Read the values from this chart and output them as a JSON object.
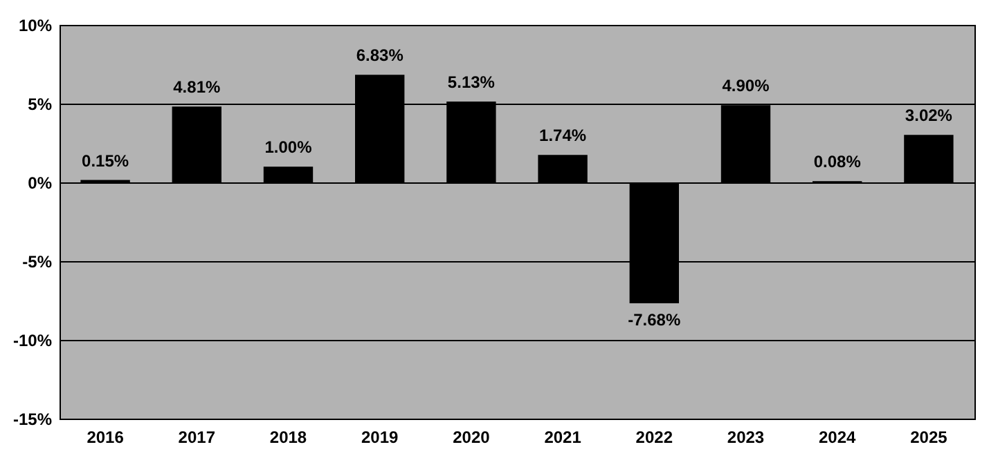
{
  "chart_data": {
    "type": "bar",
    "categories": [
      "2016",
      "2017",
      "2018",
      "2019",
      "2020",
      "2021",
      "2022",
      "2023",
      "2024",
      "2025"
    ],
    "values": [
      0.15,
      4.81,
      1.0,
      6.83,
      5.13,
      1.74,
      -7.68,
      4.9,
      0.08,
      3.02
    ],
    "value_labels": [
      "0.15%",
      "4.81%",
      "1.00%",
      "6.83%",
      "5.13%",
      "1.74%",
      "-7.68%",
      "4.90%",
      "0.08%",
      "3.02%"
    ],
    "color": "#000000",
    "ylim": [
      -15,
      10
    ],
    "yticks": [
      {
        "value": -15,
        "label": "-15%"
      },
      {
        "value": -10,
        "label": "-10%"
      },
      {
        "value": -5,
        "label": "-5%"
      },
      {
        "value": 0,
        "label": "0%"
      },
      {
        "value": 5,
        "label": "5%"
      },
      {
        "value": 10,
        "label": "10%"
      }
    ],
    "grid": "y"
  }
}
